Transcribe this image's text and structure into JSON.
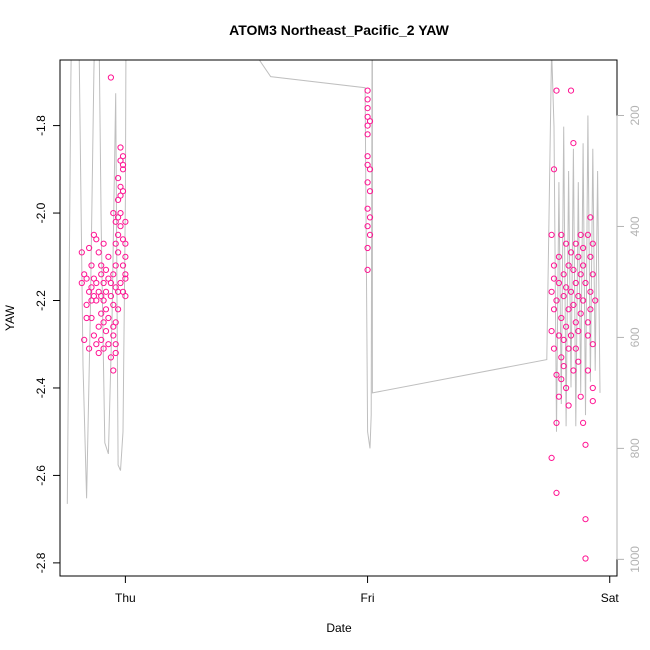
{
  "chart_data": {
    "type": "scatter",
    "title": "ATOM3 Northeast_Pacific_2 YAW",
    "xlabel": "Date",
    "ylabel": "YAW",
    "x_ticks": [
      "Thu",
      "Fri",
      "Sat"
    ],
    "x_tick_days": [
      0,
      1,
      2
    ],
    "xlim": [
      -0.27,
      2.03
    ],
    "ylim": [
      -2.83,
      -1.65
    ],
    "y_ticks": [
      -2.8,
      -2.6,
      -2.4,
      -2.2,
      -2.0,
      -1.8
    ],
    "y_tick_labels": [
      "-2.8",
      "-2.6",
      "-2.4",
      "-2.2",
      "-2.0",
      "-1.8"
    ],
    "right_axis": {
      "color": "#b3b3b3",
      "ylim": [
        100,
        1030
      ],
      "ticks": [
        200,
        400,
        600,
        800,
        1000
      ],
      "tick_labels": [
        "200",
        "400",
        "600",
        "800",
        "1000"
      ]
    },
    "grid": false,
    "series": [
      {
        "kind": "points",
        "color": "#ff1493",
        "marker": "open-circle",
        "points": [
          [
            -0.18,
            -2.16
          ],
          [
            -0.18,
            -2.09
          ],
          [
            -0.17,
            -2.29
          ],
          [
            -0.17,
            -2.14
          ],
          [
            -0.16,
            -2.21
          ],
          [
            -0.16,
            -2.24
          ],
          [
            -0.16,
            -2.15
          ],
          [
            -0.15,
            -2.18
          ],
          [
            -0.15,
            -2.31
          ],
          [
            -0.15,
            -2.08
          ],
          [
            -0.14,
            -2.17
          ],
          [
            -0.14,
            -2.24
          ],
          [
            -0.14,
            -2.2
          ],
          [
            -0.14,
            -2.12
          ],
          [
            -0.13,
            -2.05
          ],
          [
            -0.13,
            -2.19
          ],
          [
            -0.13,
            -2.15
          ],
          [
            -0.13,
            -2.28
          ],
          [
            -0.12,
            -2.06
          ],
          [
            -0.12,
            -2.16
          ],
          [
            -0.12,
            -2.2
          ],
          [
            -0.12,
            -2.3
          ],
          [
            -0.11,
            -2.32
          ],
          [
            -0.11,
            -2.18
          ],
          [
            -0.11,
            -2.09
          ],
          [
            -0.11,
            -2.26
          ],
          [
            -0.1,
            -2.14
          ],
          [
            -0.1,
            -2.19
          ],
          [
            -0.1,
            -2.23
          ],
          [
            -0.1,
            -2.29
          ],
          [
            -0.1,
            -2.12
          ],
          [
            -0.09,
            -2.16
          ],
          [
            -0.09,
            -2.25
          ],
          [
            -0.09,
            -2.07
          ],
          [
            -0.09,
            -2.31
          ],
          [
            -0.09,
            -2.2
          ],
          [
            -0.08,
            -2.18
          ],
          [
            -0.08,
            -2.13
          ],
          [
            -0.08,
            -2.27
          ],
          [
            -0.08,
            -2.22
          ],
          [
            -0.07,
            -2.15
          ],
          [
            -0.07,
            -2.3
          ],
          [
            -0.07,
            -2.1
          ],
          [
            -0.07,
            -2.24
          ],
          [
            -0.06,
            -2.19
          ],
          [
            -0.06,
            -2.33
          ],
          [
            -0.06,
            -2.16
          ],
          [
            -0.06,
            -1.69
          ],
          [
            -0.05,
            -2.36
          ],
          [
            -0.05,
            -2.28
          ],
          [
            -0.05,
            -2.21
          ],
          [
            -0.05,
            -2.0
          ],
          [
            -0.05,
            -2.14
          ],
          [
            -0.05,
            -2.26
          ],
          [
            -0.04,
            -2.02
          ],
          [
            -0.04,
            -2.32
          ],
          [
            -0.04,
            -2.17
          ],
          [
            -0.04,
            -2.07
          ],
          [
            -0.04,
            -2.12
          ],
          [
            -0.04,
            -2.25
          ],
          [
            -0.04,
            -2.3
          ],
          [
            -0.03,
            -1.97
          ],
          [
            -0.03,
            -2.22
          ],
          [
            -0.03,
            -1.92
          ],
          [
            -0.03,
            -2.05
          ],
          [
            -0.03,
            -2.09
          ],
          [
            -0.03,
            -2.18
          ],
          [
            -0.03,
            -2.01
          ],
          [
            -0.02,
            -1.94
          ],
          [
            -0.02,
            -1.85
          ],
          [
            -0.02,
            -1.96
          ],
          [
            -0.02,
            -2.03
          ],
          [
            -0.02,
            -1.88
          ],
          [
            -0.02,
            -2.16
          ],
          [
            -0.02,
            -2.0
          ],
          [
            -0.01,
            -1.9
          ],
          [
            -0.01,
            -1.89
          ],
          [
            -0.01,
            -1.87
          ],
          [
            -0.01,
            -2.06
          ],
          [
            -0.01,
            -2.12
          ],
          [
            -0.01,
            -2.18
          ],
          [
            -0.01,
            -1.95
          ],
          [
            0.0,
            -2.07
          ],
          [
            0.0,
            -2.15
          ],
          [
            0.0,
            -2.19
          ],
          [
            0.0,
            -2.02
          ],
          [
            0.0,
            -2.14
          ],
          [
            0.0,
            -2.1
          ],
          [
            1.0,
            -1.72
          ],
          [
            1.0,
            -1.76
          ],
          [
            1.0,
            -1.8
          ],
          [
            1.0,
            -1.78
          ],
          [
            1.0,
            -1.82
          ],
          [
            1.0,
            -1.89
          ],
          [
            1.0,
            -1.93
          ],
          [
            1.0,
            -1.99
          ],
          [
            1.0,
            -2.03
          ],
          [
            1.0,
            -2.08
          ],
          [
            1.0,
            -2.13
          ],
          [
            1.0,
            -1.87
          ],
          [
            1.0,
            -1.74
          ],
          [
            1.01,
            -1.95
          ],
          [
            1.01,
            -2.01
          ],
          [
            1.01,
            -2.05
          ],
          [
            1.01,
            -1.9
          ],
          [
            1.01,
            -1.79
          ],
          [
            1.76,
            -2.56
          ],
          [
            1.76,
            -2.18
          ],
          [
            1.76,
            -2.27
          ],
          [
            1.76,
            -2.05
          ],
          [
            1.77,
            -2.22
          ],
          [
            1.77,
            -2.12
          ],
          [
            1.77,
            -1.9
          ],
          [
            1.77,
            -2.31
          ],
          [
            1.77,
            -2.15
          ],
          [
            1.78,
            -2.48
          ],
          [
            1.78,
            -2.64
          ],
          [
            1.78,
            -2.37
          ],
          [
            1.78,
            -2.2
          ],
          [
            1.78,
            -1.72
          ],
          [
            1.79,
            -2.1
          ],
          [
            1.79,
            -2.42
          ],
          [
            1.79,
            -2.28
          ],
          [
            1.79,
            -2.16
          ],
          [
            1.8,
            -2.33
          ],
          [
            1.8,
            -2.05
          ],
          [
            1.8,
            -2.24
          ],
          [
            1.8,
            -2.38
          ],
          [
            1.81,
            -2.19
          ],
          [
            1.81,
            -2.14
          ],
          [
            1.81,
            -2.29
          ],
          [
            1.81,
            -2.35
          ],
          [
            1.82,
            -2.07
          ],
          [
            1.82,
            -2.26
          ],
          [
            1.82,
            -2.4
          ],
          [
            1.82,
            -2.17
          ],
          [
            1.83,
            -2.12
          ],
          [
            1.83,
            -2.22
          ],
          [
            1.83,
            -2.31
          ],
          [
            1.83,
            -2.44
          ],
          [
            1.84,
            -1.72
          ],
          [
            1.84,
            -2.09
          ],
          [
            1.84,
            -2.18
          ],
          [
            1.84,
            -2.28
          ],
          [
            1.85,
            -1.84
          ],
          [
            1.85,
            -2.36
          ],
          [
            1.85,
            -2.13
          ],
          [
            1.85,
            -2.21
          ],
          [
            1.86,
            -2.07
          ],
          [
            1.86,
            -2.25
          ],
          [
            1.86,
            -2.31
          ],
          [
            1.86,
            -2.16
          ],
          [
            1.87,
            -2.1
          ],
          [
            1.87,
            -2.19
          ],
          [
            1.87,
            -2.27
          ],
          [
            1.87,
            -2.34
          ],
          [
            1.88,
            -2.05
          ],
          [
            1.88,
            -2.14
          ],
          [
            1.88,
            -2.23
          ],
          [
            1.88,
            -2.42
          ],
          [
            1.89,
            -2.12
          ],
          [
            1.89,
            -2.2
          ],
          [
            1.89,
            -2.48
          ],
          [
            1.89,
            -2.08
          ],
          [
            1.9,
            -2.53
          ],
          [
            1.9,
            -2.7
          ],
          [
            1.9,
            -2.79
          ],
          [
            1.9,
            -2.16
          ],
          [
            1.91,
            -2.25
          ],
          [
            1.91,
            -2.05
          ],
          [
            1.91,
            -2.28
          ],
          [
            1.91,
            -2.36
          ],
          [
            1.92,
            -2.01
          ],
          [
            1.92,
            -2.1
          ],
          [
            1.92,
            -2.18
          ],
          [
            1.92,
            -2.22
          ],
          [
            1.93,
            -2.3
          ],
          [
            1.93,
            -2.43
          ],
          [
            1.93,
            -2.4
          ],
          [
            1.93,
            -2.14
          ],
          [
            1.93,
            -2.07
          ],
          [
            1.94,
            -2.2
          ]
        ]
      },
      {
        "kind": "line",
        "axis": "right",
        "color": "#bfbfbf",
        "points": [
          [
            -0.24,
            900
          ],
          [
            -0.225,
            130
          ],
          [
            -0.215,
            -200
          ],
          [
            -0.2,
            -200
          ],
          [
            -0.19,
            120
          ],
          [
            -0.175,
            650
          ],
          [
            -0.16,
            890
          ],
          [
            -0.145,
            560
          ],
          [
            -0.13,
            120
          ],
          [
            -0.115,
            -200
          ],
          [
            -0.1,
            400
          ],
          [
            -0.085,
            790
          ],
          [
            -0.07,
            810
          ],
          [
            -0.055,
            560
          ],
          [
            -0.04,
            160
          ],
          [
            -0.03,
            830
          ],
          [
            -0.02,
            840
          ],
          [
            -0.01,
            770
          ],
          [
            0.0,
            350
          ],
          [
            0.005,
            -250
          ],
          [
            0.6,
            130
          ],
          [
            0.99,
            150
          ],
          [
            1.0,
            770
          ],
          [
            1.01,
            800
          ],
          [
            1.015,
            740
          ],
          [
            1.02,
            -200
          ],
          [
            1.02,
            700
          ],
          [
            1.74,
            640
          ],
          [
            1.76,
            80
          ],
          [
            1.77,
            220
          ],
          [
            1.78,
            770
          ],
          [
            1.79,
            320
          ],
          [
            1.8,
            720
          ],
          [
            1.81,
            220
          ],
          [
            1.82,
            760
          ],
          [
            1.83,
            300
          ],
          [
            1.84,
            690
          ],
          [
            1.85,
            260
          ],
          [
            1.86,
            760
          ],
          [
            1.87,
            320
          ],
          [
            1.88,
            700
          ],
          [
            1.89,
            250
          ],
          [
            1.9,
            740
          ],
          [
            1.91,
            200
          ],
          [
            1.92,
            680
          ],
          [
            1.93,
            260
          ],
          [
            1.94,
            660
          ],
          [
            1.95,
            300
          ],
          [
            1.96,
            700
          ]
        ]
      }
    ]
  }
}
